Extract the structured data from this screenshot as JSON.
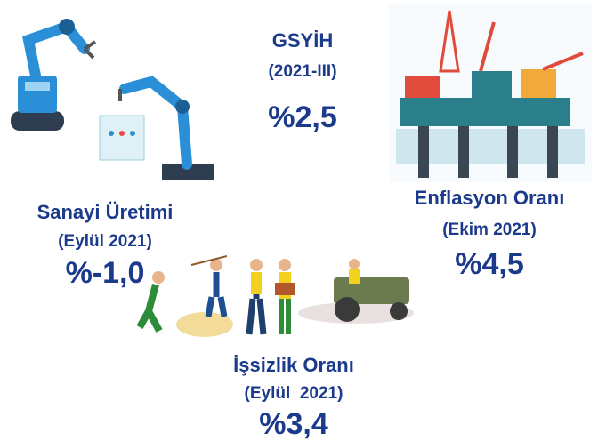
{
  "indicators": [
    {
      "title": "GSYİH",
      "period": "(2021-III)",
      "value": "%2,5"
    },
    {
      "title": "Sanayi Üretimi",
      "period": "(Eylül 2021)",
      "value": "%-1,0"
    },
    {
      "title": "Enflasyon Oranı",
      "period": "(Ekim 2021)",
      "value": "%4,5"
    },
    {
      "title": "İşsizlik Oranı",
      "period": "(Eylül  2021)",
      "value": "%3,4"
    }
  ]
}
